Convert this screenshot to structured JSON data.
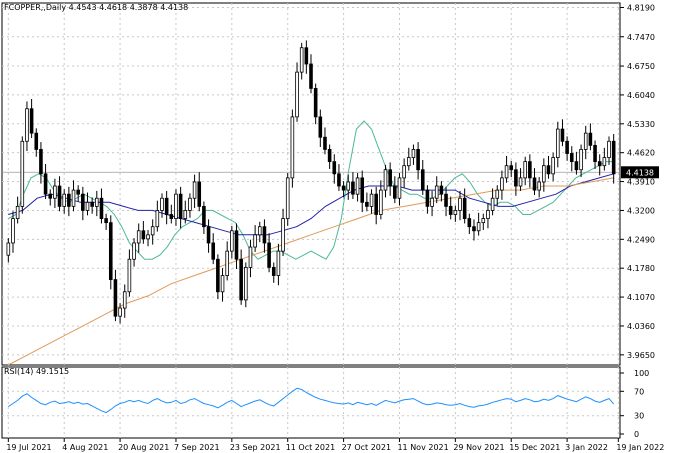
{
  "chart_data": [
    {
      "type": "candlestick",
      "title": "FCOPPER,,Daily  4.4543 4.4618 4.3878 4.4138",
      "symbol": "FCOPPER,,Daily",
      "ohlc_header": "4.4543 4.4618 4.3878 4.4138",
      "last_price_label": "4.4138",
      "last_price": 4.4138,
      "ylim": [
        3.94,
        4.83
      ],
      "y_ticks": [
        "4.8190",
        "4.7470",
        "4.6750",
        "4.6040",
        "4.5330",
        "4.4620",
        "4.3910",
        "4.3200",
        "4.2490",
        "4.1780",
        "4.1070",
        "4.0360",
        "3.9650"
      ],
      "x_ticks": [
        {
          "index": 0,
          "label": "19 Jul 2021"
        },
        {
          "index": 12,
          "label": "4 Aug 2021"
        },
        {
          "index": 24,
          "label": "20 Aug 2021"
        },
        {
          "index": 36,
          "label": "7 Sep 2021"
        },
        {
          "index": 48,
          "label": "23 Sep 2021"
        },
        {
          "index": 60,
          "label": "11 Oct 2021"
        },
        {
          "index": 72,
          "label": "27 Oct 2021"
        },
        {
          "index": 84,
          "label": "11 Nov 2021"
        },
        {
          "index": 96,
          "label": "29 Nov 2021"
        },
        {
          "index": 108,
          "label": "15 Dec 2021"
        },
        {
          "index": 120,
          "label": "3 Jan 2022"
        },
        {
          "index": 131,
          "label": "19 Jan 2022"
        }
      ],
      "grid": true,
      "colors": {
        "bull": "#ffffff",
        "bear": "#000000",
        "wick": "#000000",
        "ma_fast": "#4db89a",
        "ma_mid": "#2222aa",
        "ma_slow": "#e09a5a"
      },
      "series": [
        {
          "name": "close",
          "values": [
            4.24,
            4.3,
            4.33,
            4.49,
            4.57,
            4.51,
            4.47,
            4.41,
            4.36,
            4.35,
            4.38,
            4.33,
            4.36,
            4.33,
            4.37,
            4.36,
            4.32,
            4.34,
            4.33,
            4.35,
            4.3,
            4.29,
            4.15,
            4.06,
            4.08,
            4.12,
            4.2,
            4.24,
            4.27,
            4.25,
            4.26,
            4.28,
            4.32,
            4.35,
            4.31,
            4.3,
            4.36,
            4.3,
            4.32,
            4.35,
            4.39,
            4.33,
            4.28,
            4.24,
            4.2,
            4.12,
            4.16,
            4.22,
            4.27,
            4.2,
            4.1,
            4.18,
            4.23,
            4.26,
            4.28,
            4.24,
            4.18,
            4.16,
            4.22,
            4.3,
            4.4,
            4.55,
            4.66,
            4.72,
            4.68,
            4.62,
            4.55,
            4.5,
            4.47,
            4.44,
            4.41,
            4.38,
            4.37,
            4.39,
            4.36,
            4.4,
            4.34,
            4.33,
            4.36,
            4.31,
            4.37,
            4.42,
            4.38,
            4.35,
            4.4,
            4.43,
            4.45,
            4.47,
            4.42,
            4.37,
            4.33,
            4.35,
            4.38,
            4.36,
            4.33,
            4.31,
            4.32,
            4.35,
            4.3,
            4.28,
            4.27,
            4.29,
            4.3,
            4.32,
            4.35,
            4.37,
            4.4,
            4.43,
            4.42,
            4.38,
            4.4,
            4.44,
            4.4,
            4.37,
            4.39,
            4.43,
            4.41,
            4.45,
            4.52,
            4.49,
            4.46,
            4.44,
            4.42,
            4.47,
            4.51,
            4.48,
            4.44,
            4.43,
            4.45,
            4.49,
            4.41
          ]
        },
        {
          "name": "MA fast",
          "values": [
            4.3,
            4.31,
            4.36,
            4.4,
            4.41,
            4.4,
            4.37,
            4.35,
            4.34,
            4.35,
            4.36,
            4.35,
            4.34,
            4.33,
            4.31,
            4.28,
            4.24,
            4.22,
            4.2,
            4.2,
            4.21,
            4.23,
            4.26,
            4.28,
            4.29,
            4.3,
            4.32,
            4.32,
            4.31,
            4.3,
            4.29,
            4.26,
            4.22,
            4.2,
            4.21,
            4.22,
            4.22,
            4.21,
            4.2,
            4.21,
            4.22,
            4.21,
            4.2,
            4.23,
            4.3,
            4.42,
            4.52,
            4.54,
            4.52,
            4.47,
            4.42,
            4.38,
            4.37,
            4.36,
            4.36,
            4.35,
            4.35,
            4.36,
            4.38,
            4.4,
            4.41,
            4.39,
            4.36,
            4.34,
            4.33,
            4.34,
            4.34,
            4.33,
            4.31,
            4.31,
            4.32,
            4.33,
            4.34,
            4.36,
            4.38,
            4.4,
            4.41,
            4.42,
            4.43,
            4.44,
            4.44
          ]
        },
        {
          "name": "MA mid",
          "values": [
            4.31,
            4.32,
            4.35,
            4.36,
            4.35,
            4.34,
            4.34,
            4.34,
            4.33,
            4.32,
            4.32,
            4.31,
            4.3,
            4.29,
            4.28,
            4.27,
            4.26,
            4.26,
            4.26,
            4.27,
            4.28,
            4.3,
            4.33,
            4.35,
            4.37,
            4.38,
            4.38,
            4.38,
            4.37,
            4.37,
            4.37,
            4.37,
            4.35,
            4.34,
            4.33,
            4.33,
            4.34,
            4.35,
            4.36,
            4.38,
            4.39,
            4.4,
            4.41
          ]
        },
        {
          "name": "MA slow",
          "values": [
            3.94,
            3.97,
            4.0,
            4.03,
            4.06,
            4.09,
            4.11,
            4.14,
            4.16,
            4.18,
            4.2,
            4.22,
            4.24,
            4.26,
            4.28,
            4.3,
            4.32,
            4.33,
            4.34,
            4.35,
            4.36,
            4.37,
            4.37,
            4.38,
            4.38,
            4.39,
            4.4
          ]
        }
      ]
    },
    {
      "type": "line",
      "title": "RSI(14) 49.1515",
      "name": "RSI(14)",
      "value_label": "49.1515",
      "ylim": [
        0,
        100
      ],
      "y_ticks": [
        "100",
        "70",
        "30",
        "0"
      ],
      "color": "#1e90ff",
      "series": [
        {
          "name": "RSI(14)",
          "values": [
            45,
            50,
            55,
            62,
            66,
            60,
            55,
            50,
            48,
            52,
            54,
            50,
            51,
            53,
            50,
            52,
            49,
            50,
            46,
            42,
            38,
            35,
            40,
            46,
            50,
            52,
            55,
            53,
            55,
            52,
            50,
            55,
            58,
            54,
            51,
            52,
            55,
            50,
            52,
            56,
            58,
            54,
            50,
            48,
            46,
            43,
            47,
            52,
            55,
            50,
            45,
            48,
            51,
            54,
            56,
            52,
            48,
            46,
            52,
            58,
            64,
            70,
            75,
            73,
            68,
            64,
            60,
            57,
            55,
            53,
            51,
            50,
            49,
            51,
            48,
            52,
            50,
            48,
            50,
            47,
            51,
            55,
            53,
            51,
            54,
            56,
            57,
            58,
            54,
            50,
            48,
            49,
            51,
            50,
            48,
            47,
            48,
            50,
            47,
            45,
            44,
            46,
            47,
            49,
            52,
            54,
            56,
            58,
            57,
            53,
            55,
            58,
            56,
            53,
            54,
            57,
            55,
            58,
            63,
            60,
            57,
            55,
            53,
            57,
            61,
            58,
            54,
            52,
            55,
            58,
            49
          ]
        }
      ]
    }
  ]
}
